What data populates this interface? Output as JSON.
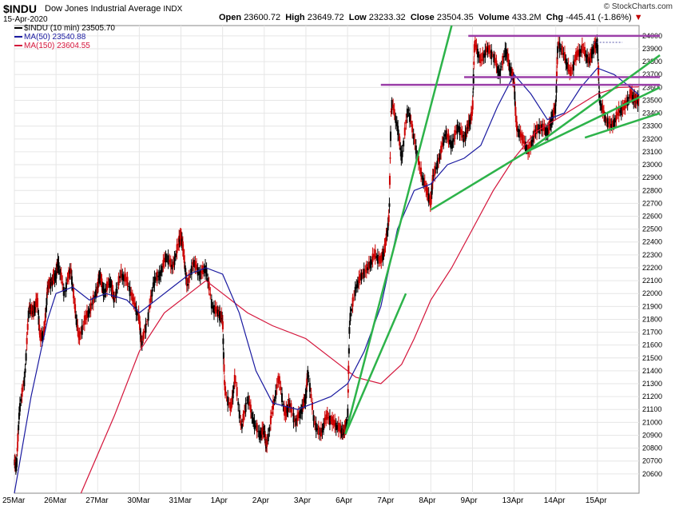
{
  "header": {
    "symbol": "$INDU",
    "name": "Dow Jones Industrial Average",
    "exchange": "INDX",
    "date": "15-Apr-2020",
    "credit": "© StockCharts.com",
    "open_label": "Open",
    "open": "23600.72",
    "high_label": "High",
    "high": "23649.72",
    "low_label": "Low",
    "low": "23233.32",
    "close_label": "Close",
    "close": "23504.35",
    "volume_label": "Volume",
    "volume": "433.2M",
    "chg_label": "Chg",
    "chg": "-445.41 (-1.86%)",
    "chg_marker": "▼"
  },
  "legend": [
    {
      "label": "$INDU (10 min) 23505.70",
      "color": "#000000"
    },
    {
      "label": "MA(50) 23540.88",
      "color": "#1a1aa0"
    },
    {
      "label": "MA(150) 23604.55",
      "color": "#d4143a"
    }
  ],
  "chart_data": {
    "type": "candlestick-line",
    "x_tick_labels": [
      "25Mar",
      "26Mar",
      "27Mar",
      "30Mar",
      "31Mar",
      "1Apr",
      "2Apr",
      "3Apr",
      "6Apr",
      "7Apr",
      "8Apr",
      "9Apr",
      "13Apr",
      "14Apr",
      "15Apr"
    ],
    "ylim": [
      20450,
      24080
    ],
    "y_ticks": [
      20600,
      20700,
      20800,
      20900,
      21000,
      21100,
      21200,
      21300,
      21400,
      21500,
      21600,
      21700,
      21800,
      21900,
      22000,
      22100,
      22200,
      22300,
      22400,
      22500,
      22600,
      22700,
      22800,
      22900,
      23000,
      23100,
      23200,
      23300,
      23400,
      23500,
      23600,
      23700,
      23800,
      23900,
      24000
    ],
    "price_path": [
      [
        0.0,
        20700
      ],
      [
        0.05,
        20650
      ],
      [
        0.12,
        21100
      ],
      [
        0.25,
        21350
      ],
      [
        0.35,
        21900
      ],
      [
        0.45,
        21850
      ],
      [
        0.55,
        21950
      ],
      [
        0.62,
        21650
      ],
      [
        0.72,
        21700
      ],
      [
        0.8,
        22050
      ],
      [
        0.9,
        22100
      ],
      [
        1.0,
        22150
      ],
      [
        1.05,
        22250
      ],
      [
        1.2,
        22000
      ],
      [
        1.35,
        22200
      ],
      [
        1.45,
        21900
      ],
      [
        1.55,
        21650
      ],
      [
        1.7,
        21800
      ],
      [
        1.85,
        21900
      ],
      [
        2.0,
        22050
      ],
      [
        2.05,
        22150
      ],
      [
        2.15,
        22000
      ],
      [
        2.3,
        22100
      ],
      [
        2.4,
        21950
      ],
      [
        2.55,
        22150
      ],
      [
        2.7,
        22100
      ],
      [
        2.85,
        21950
      ],
      [
        3.0,
        21800
      ],
      [
        3.05,
        21600
      ],
      [
        3.2,
        21800
      ],
      [
        3.35,
        22100
      ],
      [
        3.5,
        22150
      ],
      [
        3.65,
        22300
      ],
      [
        3.8,
        22200
      ],
      [
        3.95,
        22400
      ],
      [
        4.0,
        22450
      ],
      [
        4.05,
        22350
      ],
      [
        4.15,
        22050
      ],
      [
        4.3,
        22250
      ],
      [
        4.45,
        22150
      ],
      [
        4.6,
        22200
      ],
      [
        4.75,
        21900
      ],
      [
        4.9,
        21850
      ],
      [
        5.0,
        21800
      ],
      [
        5.05,
        21250
      ],
      [
        5.2,
        21100
      ],
      [
        5.3,
        21350
      ],
      [
        5.45,
        20950
      ],
      [
        5.6,
        21200
      ],
      [
        5.75,
        21000
      ],
      [
        5.9,
        20900
      ],
      [
        6.0,
        20950
      ],
      [
        6.05,
        20800
      ],
      [
        6.2,
        21100
      ],
      [
        6.35,
        21350
      ],
      [
        6.5,
        21050
      ],
      [
        6.6,
        21150
      ],
      [
        6.75,
        21000
      ],
      [
        6.9,
        21100
      ],
      [
        7.0,
        21200
      ],
      [
        7.05,
        21400
      ],
      [
        7.2,
        21000
      ],
      [
        7.35,
        20900
      ],
      [
        7.5,
        21050
      ],
      [
        7.65,
        21000
      ],
      [
        7.8,
        20950
      ],
      [
        7.9,
        20920
      ],
      [
        8.0,
        21000
      ],
      [
        8.05,
        21800
      ],
      [
        8.2,
        22050
      ],
      [
        8.35,
        22150
      ],
      [
        8.5,
        22200
      ],
      [
        8.65,
        22300
      ],
      [
        8.8,
        22250
      ],
      [
        8.9,
        22350
      ],
      [
        9.0,
        22600
      ],
      [
        9.05,
        23500
      ],
      [
        9.2,
        23300
      ],
      [
        9.3,
        23050
      ],
      [
        9.45,
        23450
      ],
      [
        9.6,
        23200
      ],
      [
        9.75,
        22950
      ],
      [
        9.9,
        22800
      ],
      [
        10.0,
        22700
      ],
      [
        10.05,
        22900
      ],
      [
        10.2,
        23050
      ],
      [
        10.35,
        23250
      ],
      [
        10.5,
        23150
      ],
      [
        10.65,
        23300
      ],
      [
        10.8,
        23200
      ],
      [
        10.9,
        23300
      ],
      [
        11.0,
        23400
      ],
      [
        11.05,
        23950
      ],
      [
        11.2,
        23800
      ],
      [
        11.35,
        23900
      ],
      [
        11.5,
        23850
      ],
      [
        11.65,
        23700
      ],
      [
        11.8,
        23900
      ],
      [
        11.9,
        23750
      ],
      [
        12.0,
        23650
      ],
      [
        12.05,
        23300
      ],
      [
        12.2,
        23200
      ],
      [
        12.35,
        23100
      ],
      [
        12.5,
        23250
      ],
      [
        12.65,
        23300
      ],
      [
        12.8,
        23250
      ],
      [
        12.9,
        23350
      ],
      [
        13.0,
        23450
      ],
      [
        13.05,
        23950
      ],
      [
        13.2,
        23850
      ],
      [
        13.35,
        23700
      ],
      [
        13.5,
        23850
      ],
      [
        13.65,
        23900
      ],
      [
        13.8,
        23800
      ],
      [
        13.9,
        23900
      ],
      [
        14.0,
        23950
      ],
      [
        14.05,
        23500
      ],
      [
        14.2,
        23350
      ],
      [
        14.35,
        23300
      ],
      [
        14.5,
        23400
      ],
      [
        14.65,
        23450
      ],
      [
        14.8,
        23550
      ],
      [
        14.9,
        23500
      ],
      [
        15.0,
        23505
      ]
    ],
    "ma50_path": [
      [
        0.0,
        20450
      ],
      [
        0.4,
        21200
      ],
      [
        0.8,
        21800
      ],
      [
        1.0,
        22000
      ],
      [
        1.4,
        22050
      ],
      [
        1.8,
        21950
      ],
      [
        2.2,
        22000
      ],
      [
        2.7,
        21950
      ],
      [
        3.0,
        21850
      ],
      [
        3.4,
        21950
      ],
      [
        3.8,
        22050
      ],
      [
        4.2,
        22150
      ],
      [
        4.6,
        22200
      ],
      [
        5.0,
        22150
      ],
      [
        5.4,
        21850
      ],
      [
        5.8,
        21400
      ],
      [
        6.2,
        21150
      ],
      [
        6.8,
        21100
      ],
      [
        7.2,
        21150
      ],
      [
        7.6,
        21200
      ],
      [
        8.0,
        21300
      ],
      [
        8.4,
        21550
      ],
      [
        8.8,
        21900
      ],
      [
        9.2,
        22500
      ],
      [
        9.6,
        22800
      ],
      [
        10.0,
        22850
      ],
      [
        10.4,
        23000
      ],
      [
        10.8,
        23050
      ],
      [
        11.2,
        23150
      ],
      [
        11.6,
        23450
      ],
      [
        12.0,
        23700
      ],
      [
        12.4,
        23550
      ],
      [
        12.8,
        23350
      ],
      [
        13.2,
        23400
      ],
      [
        13.6,
        23600
      ],
      [
        14.0,
        23750
      ],
      [
        14.4,
        23700
      ],
      [
        14.8,
        23600
      ],
      [
        15.0,
        23540
      ]
    ],
    "ma150_path": [
      [
        1.6,
        20450
      ],
      [
        2.4,
        21050
      ],
      [
        3.0,
        21550
      ],
      [
        3.6,
        21850
      ],
      [
        4.2,
        22000
      ],
      [
        4.6,
        22100
      ],
      [
        5.0,
        22000
      ],
      [
        5.6,
        21850
      ],
      [
        6.2,
        21750
      ],
      [
        7.0,
        21650
      ],
      [
        7.6,
        21500
      ],
      [
        8.2,
        21350
      ],
      [
        8.8,
        21300
      ],
      [
        9.3,
        21450
      ],
      [
        9.6,
        21650
      ],
      [
        10.0,
        21950
      ],
      [
        10.5,
        22200
      ],
      [
        11.0,
        22500
      ],
      [
        11.5,
        22800
      ],
      [
        12.0,
        23050
      ],
      [
        12.5,
        23250
      ],
      [
        13.0,
        23350
      ],
      [
        13.5,
        23450
      ],
      [
        14.0,
        23550
      ],
      [
        14.5,
        23600
      ],
      [
        15.0,
        23604
      ]
    ],
    "horizontal_lines": [
      {
        "y": 24000,
        "x1": 10.9,
        "x2": 15.5
      },
      {
        "y": 23950,
        "x1": 13.9,
        "x2": 14.6,
        "dashed": true
      },
      {
        "y": 23680,
        "x1": 10.8,
        "x2": 15.5
      },
      {
        "y": 23620,
        "x1": 8.8,
        "x2": 15.5
      }
    ],
    "trend_lines": [
      {
        "p1": [
          7.95,
          20910
        ],
        "p2": [
          10.5,
          24080
        ]
      },
      {
        "p1": [
          7.95,
          20910
        ],
        "p2": [
          9.4,
          22000
        ]
      },
      {
        "p1": [
          10.0,
          22650
        ],
        "p2": [
          12.3,
          23100
        ]
      },
      {
        "p1": [
          12.3,
          23100
        ],
        "p2": [
          15.5,
          23600
        ]
      },
      {
        "p1": [
          12.3,
          23100
        ],
        "p2": [
          15.5,
          23850
        ]
      },
      {
        "p1": [
          13.7,
          23210
        ],
        "p2": [
          15.5,
          23400
        ]
      }
    ],
    "grid": true,
    "legend_position": "top-left"
  }
}
